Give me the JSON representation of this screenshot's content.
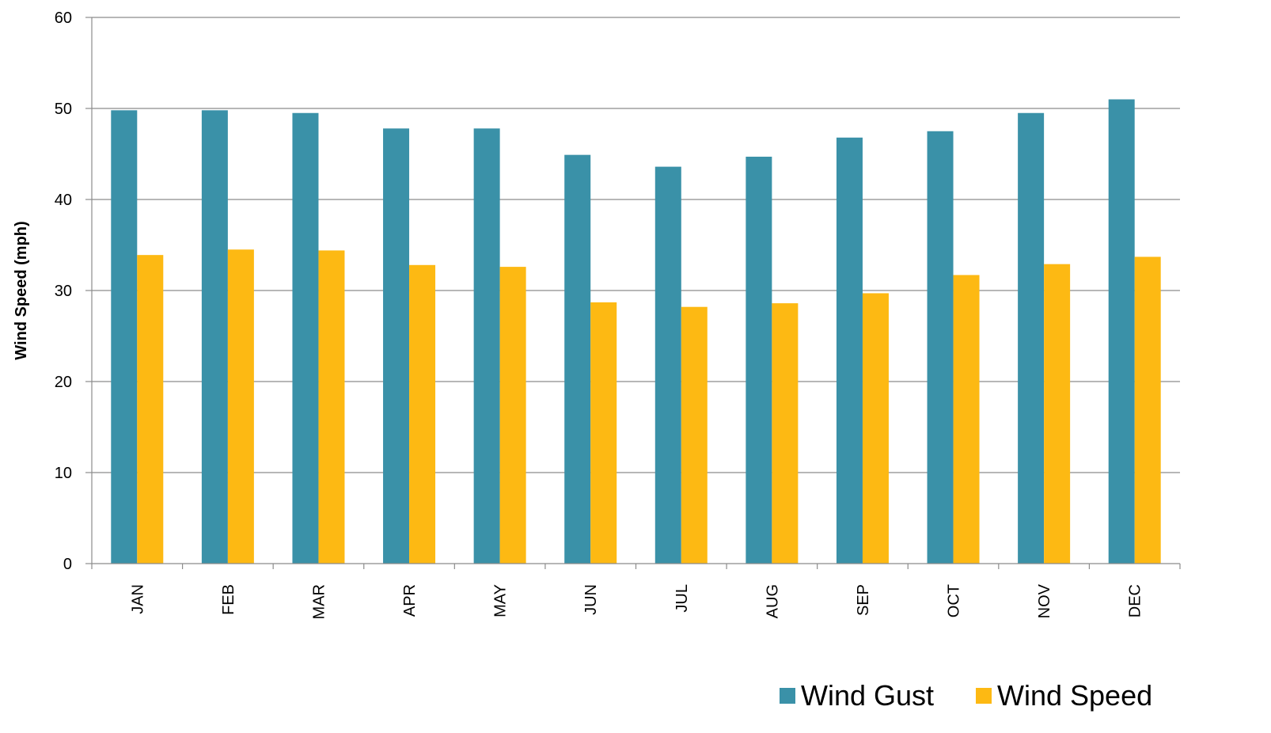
{
  "chart_data": {
    "type": "bar",
    "title": "",
    "xlabel": "",
    "ylabel": "Wind Speed (mph)",
    "ylim": [
      0,
      60
    ],
    "yticks": [
      0,
      10,
      20,
      30,
      40,
      50,
      60
    ],
    "grid": true,
    "legend_position": "bottom-right",
    "categories": [
      "JAN",
      "FEB",
      "MAR",
      "APR",
      "MAY",
      "JUN",
      "JUL",
      "AUG",
      "SEP",
      "OCT",
      "NOV",
      "DEC"
    ],
    "series": [
      {
        "name": "Wind Gust",
        "color": "#3A91A8",
        "values": [
          49.8,
          49.8,
          49.5,
          47.8,
          47.8,
          44.9,
          43.6,
          44.7,
          46.8,
          47.5,
          49.5,
          51.0
        ]
      },
      {
        "name": "Wind Speed",
        "color": "#FDB913",
        "values": [
          33.9,
          34.5,
          34.4,
          32.8,
          32.6,
          28.7,
          28.2,
          28.6,
          29.7,
          31.7,
          32.9,
          33.7
        ]
      }
    ]
  }
}
